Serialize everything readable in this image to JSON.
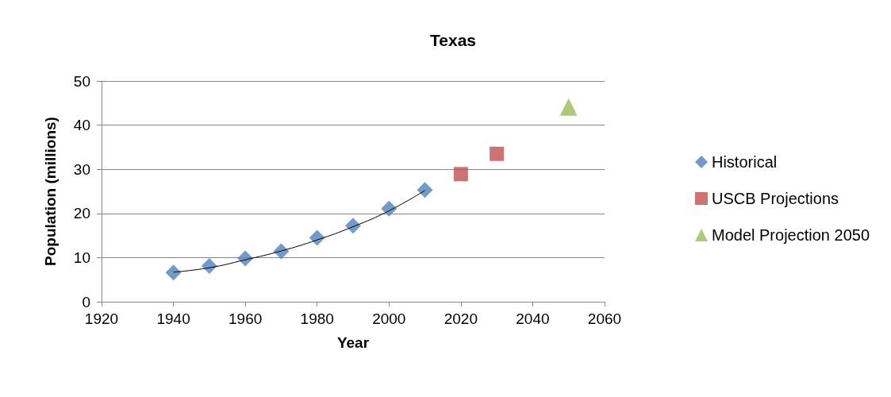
{
  "chart_data": {
    "type": "scatter",
    "title": "Texas",
    "xlabel": "Year",
    "ylabel": "Population (millions)",
    "xlim": [
      1920,
      2060
    ],
    "xticks": [
      1920,
      1940,
      1960,
      1980,
      2000,
      2020,
      2040,
      2060
    ],
    "ylim": [
      0,
      50
    ],
    "yticks": [
      0,
      10,
      20,
      30,
      40,
      50
    ],
    "grid": "y",
    "legend": "right",
    "series": [
      {
        "name": "Historical",
        "color": "#4f81bd",
        "marker": "diamond",
        "x": [
          1940,
          1950,
          1960,
          1970,
          1980,
          1990,
          2000,
          2010
        ],
        "values": [
          6.6,
          8.1,
          9.8,
          11.4,
          14.5,
          17.2,
          21.1,
          25.3
        ]
      },
      {
        "name": "USCB Projections",
        "color": "#c0504d",
        "marker": "square",
        "x": [
          2020,
          2030
        ],
        "values": [
          28.9,
          33.5
        ]
      },
      {
        "name": "Model Projection 2050",
        "color": "#9bbb59",
        "marker": "triangle",
        "x": [
          2050
        ],
        "values": [
          44.1
        ]
      },
      {
        "type": "line",
        "color": "#000000",
        "marker": "none",
        "x": [
          1940,
          1950,
          1960,
          1970,
          1980,
          1990,
          2000,
          2010
        ],
        "values": [
          6.7,
          7.7,
          9.5,
          11.5,
          14.0,
          17.0,
          20.6,
          25.2
        ]
      }
    ]
  }
}
